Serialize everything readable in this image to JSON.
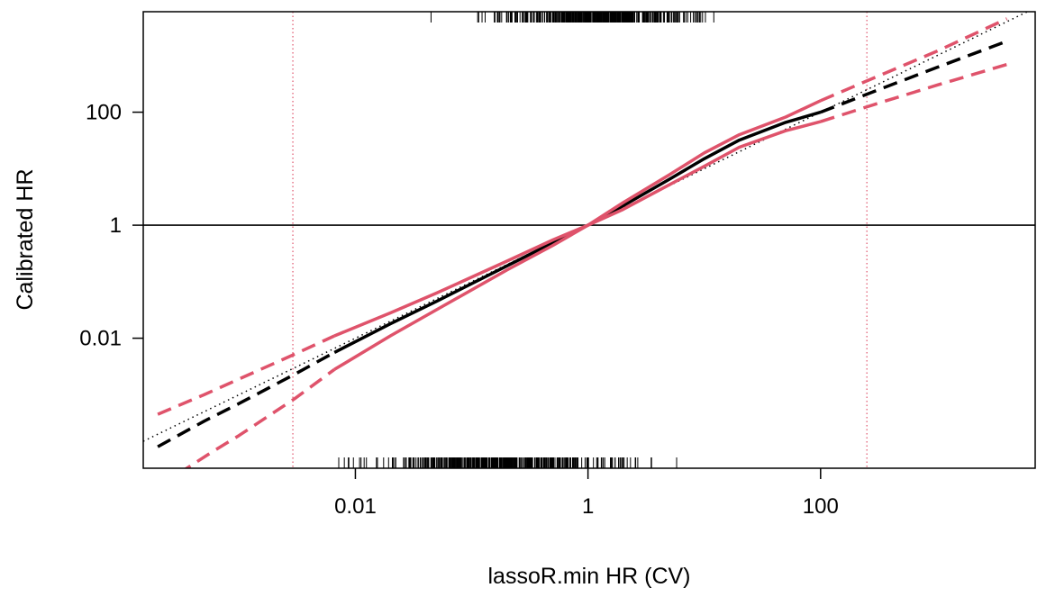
{
  "chart_data": {
    "type": "line",
    "title": "",
    "xlabel": "lassoR.min HR (CV)",
    "ylabel": "Calibrated HR",
    "x_scale": "log10",
    "y_scale": "log10",
    "xlim": [
      0.00015,
      7000
    ],
    "ylim": [
      5e-05,
      6000
    ],
    "x_ticks": [
      {
        "value": 0.01,
        "label": "0.01"
      },
      {
        "value": 1,
        "label": "1"
      },
      {
        "value": 100,
        "label": "100"
      }
    ],
    "y_ticks": [
      {
        "value": 0.01,
        "label": "0.01"
      },
      {
        "value": 1,
        "label": "1"
      },
      {
        "value": 100,
        "label": "100"
      }
    ],
    "reference_lines": {
      "horizontal_y": 1,
      "identity_line": true,
      "vertical_x": [
        0.0029,
        250
      ]
    },
    "series": [
      {
        "role": "calibration-estimate",
        "style": "solid",
        "color": "#000000",
        "x": [
          0.0066,
          0.02,
          0.05,
          0.2,
          0.5,
          1,
          2,
          5,
          10,
          20,
          50,
          100
        ],
        "y": [
          0.0056,
          0.018,
          0.045,
          0.19,
          0.49,
          1,
          2.2,
          6.5,
          15,
          32,
          66,
          100
        ]
      },
      {
        "role": "calibration-estimate-extrapolated-low",
        "style": "dashed",
        "color": "#000000",
        "x": [
          0.0002,
          0.0005,
          0.001,
          0.003,
          0.0066
        ],
        "y": [
          0.00012,
          0.00034,
          0.0007,
          0.0023,
          0.0056
        ]
      },
      {
        "role": "calibration-estimate-extrapolated-high",
        "style": "dashed",
        "color": "#000000",
        "x": [
          100,
          300,
          1000,
          4000
        ],
        "y": [
          100,
          240,
          620,
          1800
        ]
      },
      {
        "role": "upper-ci",
        "style": "solid",
        "color": "#DF536B",
        "x": [
          0.0066,
          0.02,
          0.05,
          0.2,
          0.5,
          1,
          2,
          5,
          10,
          20,
          50,
          100
        ],
        "y": [
          0.011,
          0.028,
          0.063,
          0.23,
          0.55,
          1,
          2.5,
          7.8,
          19,
          40,
          82,
          160
        ]
      },
      {
        "role": "upper-ci-extrapolated-low",
        "style": "dashed",
        "color": "#DF536B",
        "x": [
          0.0002,
          0.0005,
          0.001,
          0.003,
          0.0066
        ],
        "y": [
          0.00045,
          0.001,
          0.0019,
          0.0052,
          0.011
        ]
      },
      {
        "role": "upper-ci-extrapolated-high",
        "style": "dashed",
        "color": "#DF536B",
        "x": [
          100,
          300,
          1000,
          4000
        ],
        "y": [
          160,
          420,
          1200,
          4500
        ]
      },
      {
        "role": "lower-ci",
        "style": "solid",
        "color": "#DF536B",
        "x": [
          0.0066,
          0.02,
          0.05,
          0.2,
          0.5,
          1,
          2,
          5,
          10,
          20,
          50,
          100
        ],
        "y": [
          0.0028,
          0.011,
          0.032,
          0.16,
          0.44,
          1,
          1.9,
          5.2,
          11,
          24,
          47,
          68
        ]
      },
      {
        "role": "lower-ci-extrapolated-low",
        "style": "dashed",
        "color": "#DF536B",
        "x": [
          0.0003,
          0.0006,
          0.001,
          0.003,
          0.0066
        ],
        "y": [
          4e-05,
          0.0001,
          0.00019,
          0.00085,
          0.0028
        ]
      },
      {
        "role": "lower-ci-extrapolated-high",
        "style": "dashed",
        "color": "#DF536B",
        "x": [
          100,
          300,
          1000,
          4000
        ],
        "y": [
          68,
          140,
          300,
          700
        ]
      }
    ],
    "rug_note": "tick marks along top and bottom axes mark individual observation values"
  }
}
